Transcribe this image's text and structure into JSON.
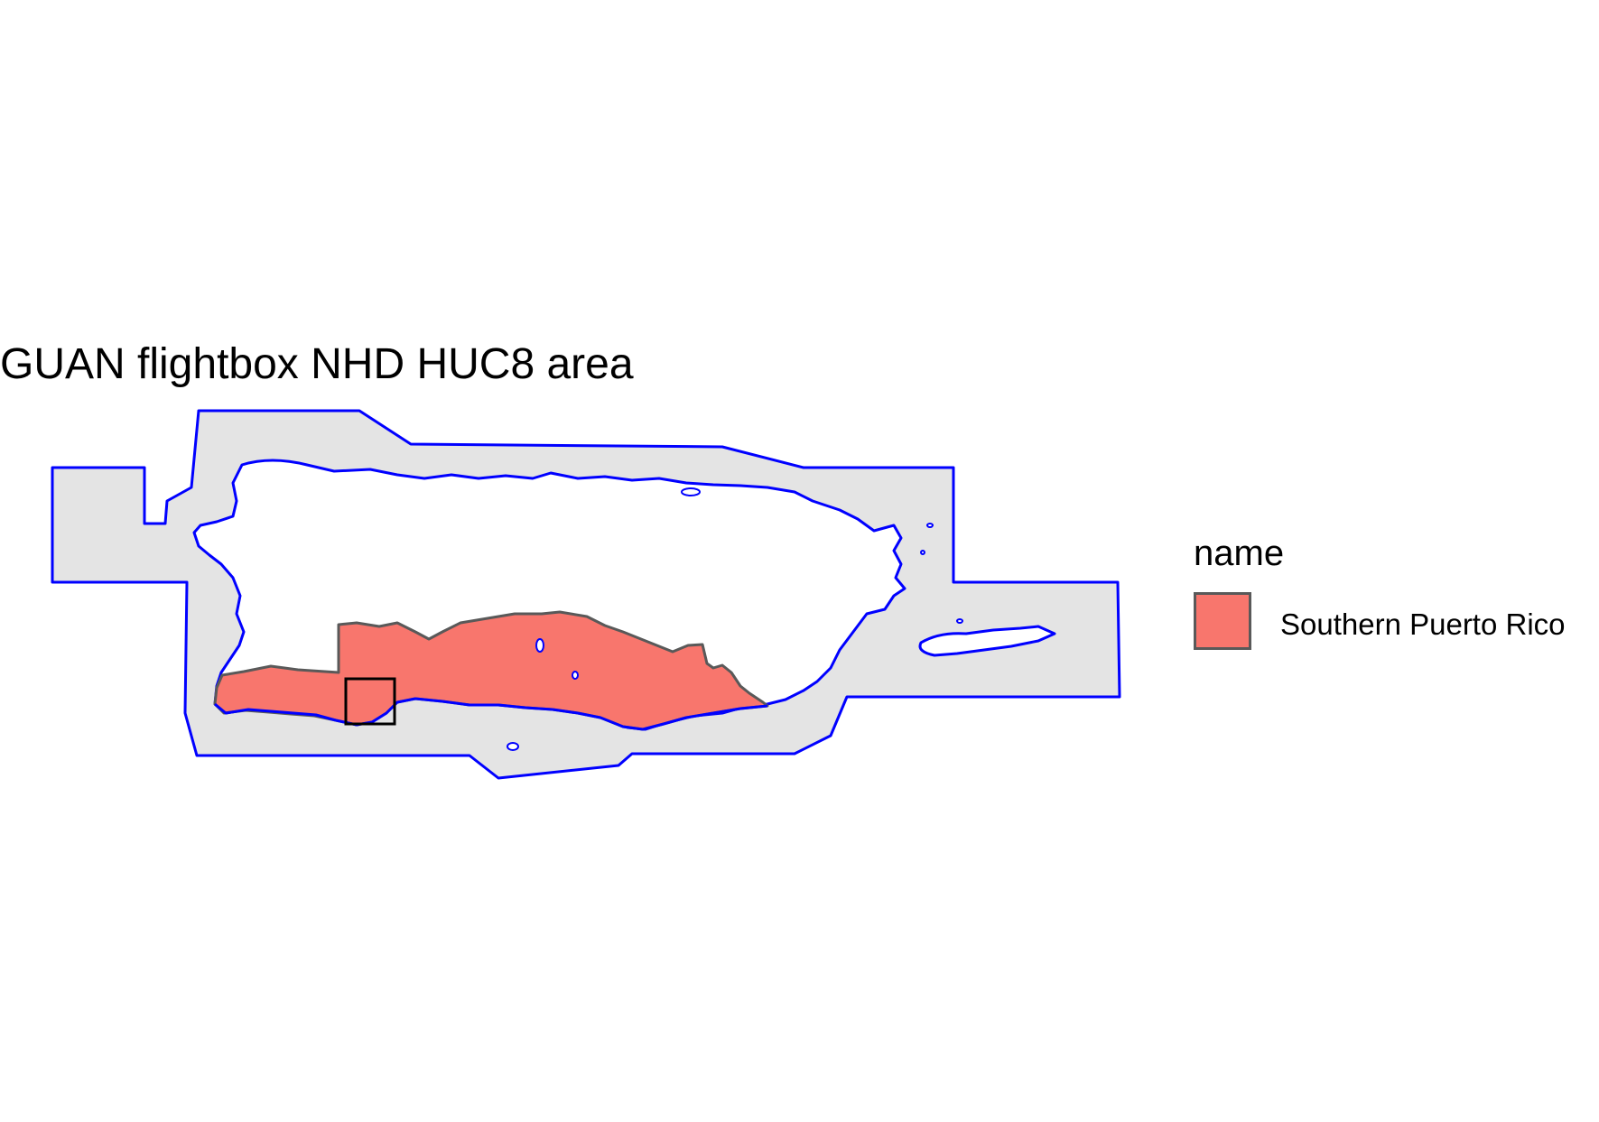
{
  "title": "GUAN flightbox NHD HUC8 area",
  "legend": {
    "title": "name",
    "items": [
      {
        "label": "Southern Puerto Rico",
        "fill": "#F8766D",
        "border": "#595959"
      }
    ]
  },
  "colors": {
    "flightbox_fill": "#E4E4E4",
    "flightbox_outline": "#0000FF",
    "huc8_fill": "#F8766D",
    "huc8_outline": "#595959",
    "land": "#FFFFFF",
    "focus_box": "#000000"
  }
}
